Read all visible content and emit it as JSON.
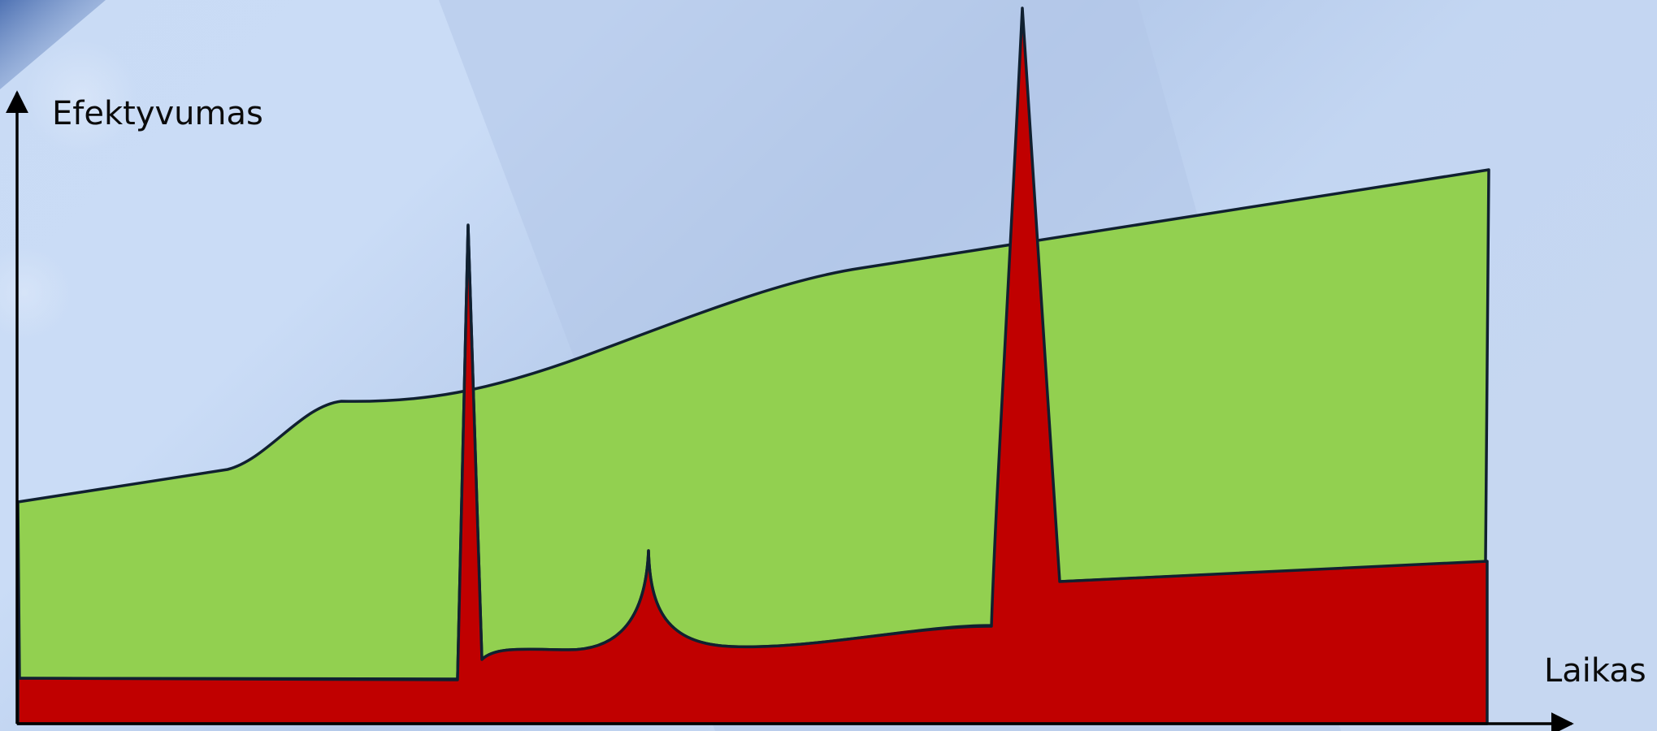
{
  "diagram": {
    "y_axis_label": "Efektyvumas",
    "x_axis_label": "Laikas",
    "colors": {
      "background_light": "#c9dbf5",
      "background_mid": "#b3c9ea",
      "background_dark": "#4f72b3",
      "green_area": "#92d050",
      "red_area": "#c00000",
      "outline": "#102030",
      "axis": "#000000"
    },
    "shapes": [
      "green-area",
      "red-area",
      "axes"
    ]
  }
}
